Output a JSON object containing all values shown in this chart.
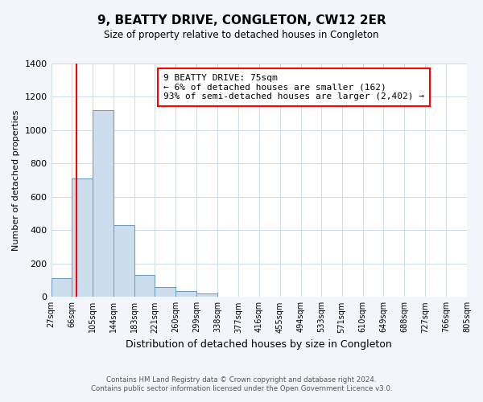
{
  "title": "9, BEATTY DRIVE, CONGLETON, CW12 2ER",
  "subtitle": "Size of property relative to detached houses in Congleton",
  "xlabel": "Distribution of detached houses by size in Congleton",
  "ylabel": "Number of detached properties",
  "bin_edges": [
    27,
    66,
    105,
    144,
    183,
    221,
    260,
    299,
    338,
    377,
    416,
    455,
    494,
    533,
    571,
    610,
    649,
    688,
    727,
    766,
    805
  ],
  "bin_labels": [
    "27sqm",
    "66sqm",
    "105sqm",
    "144sqm",
    "183sqm",
    "221sqm",
    "260sqm",
    "299sqm",
    "338sqm",
    "377sqm",
    "416sqm",
    "455sqm",
    "494sqm",
    "533sqm",
    "571sqm",
    "610sqm",
    "649sqm",
    "688sqm",
    "727sqm",
    "766sqm",
    "805sqm"
  ],
  "counts": [
    110,
    710,
    1120,
    430,
    130,
    57,
    35,
    20,
    0,
    0,
    0,
    0,
    0,
    0,
    0,
    0,
    0,
    0,
    0,
    0
  ],
  "bar_color": "#ccdded",
  "bar_edge_color": "#6699bb",
  "red_line_x": 75,
  "ylim": [
    0,
    1400
  ],
  "yticks": [
    0,
    200,
    400,
    600,
    800,
    1000,
    1200,
    1400
  ],
  "annotation_box_text": "9 BEATTY DRIVE: 75sqm\n← 6% of detached houses are smaller (162)\n93% of semi-detached houses are larger (2,402) →",
  "footer_line1": "Contains HM Land Registry data © Crown copyright and database right 2024.",
  "footer_line2": "Contains public sector information licensed under the Open Government Licence v3.0.",
  "bg_color": "#f2f6fa",
  "plot_bg_color": "#ffffff",
  "grid_color": "#d0dce8"
}
